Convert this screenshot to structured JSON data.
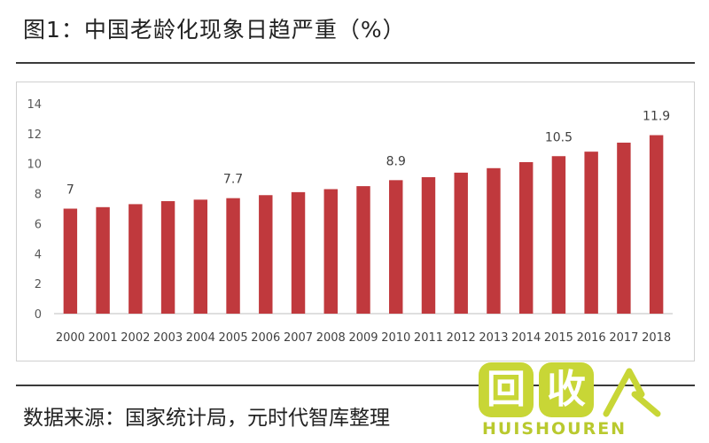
{
  "figure": {
    "title": "图1：中国老龄化现象日趋严重（%）",
    "source": "数据来源：国家统计局，元时代智库整理"
  },
  "watermark": {
    "char_one": "回",
    "char_two": "收",
    "text": "HUISHOUREN",
    "color": "#c8d636"
  },
  "chart_data": {
    "type": "bar",
    "categories": [
      "2000",
      "2001",
      "2002",
      "2003",
      "2004",
      "2005",
      "2006",
      "2007",
      "2008",
      "2009",
      "2010",
      "2011",
      "2012",
      "2013",
      "2014",
      "2015",
      "2016",
      "2017",
      "2018"
    ],
    "values": [
      7.0,
      7.1,
      7.3,
      7.5,
      7.6,
      7.7,
      7.9,
      8.1,
      8.3,
      8.5,
      8.9,
      9.1,
      9.4,
      9.7,
      10.1,
      10.5,
      10.8,
      11.4,
      11.9
    ],
    "data_labels": [
      {
        "category": "2000",
        "text": "7"
      },
      {
        "category": "2005",
        "text": "7.7"
      },
      {
        "category": "2010",
        "text": "8.9"
      },
      {
        "category": "2015",
        "text": "10.5"
      },
      {
        "category": "2018",
        "text": "11.9"
      }
    ],
    "yticks": [
      0,
      2,
      4,
      6,
      8,
      10,
      12,
      14
    ],
    "ylim": [
      0,
      14
    ],
    "grid": false,
    "bar_color": "#c0393d",
    "xlabel": "",
    "ylabel": ""
  }
}
